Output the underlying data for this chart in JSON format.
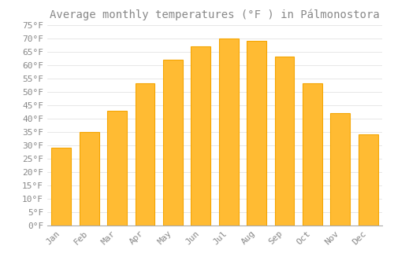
{
  "title": "Average monthly temperatures (°F ) in Pálmonostora",
  "months": [
    "Jan",
    "Feb",
    "Mar",
    "Apr",
    "May",
    "Jun",
    "Jul",
    "Aug",
    "Sep",
    "Oct",
    "Nov",
    "Dec"
  ],
  "values": [
    29,
    35,
    43,
    53,
    62,
    67,
    70,
    69,
    63,
    53,
    42,
    34
  ],
  "bar_color_main": "#FFBB33",
  "bar_color_edge": "#F5A500",
  "background_color": "#FFFFFF",
  "plot_bg_color": "#FFFFFF",
  "grid_color": "#DDDDDD",
  "text_color": "#888888",
  "spine_color": "#AAAAAA",
  "ylim": [
    0,
    75
  ],
  "yticks": [
    0,
    5,
    10,
    15,
    20,
    25,
    30,
    35,
    40,
    45,
    50,
    55,
    60,
    65,
    70,
    75
  ],
  "title_fontsize": 10,
  "tick_fontsize": 8,
  "font_family": "monospace"
}
